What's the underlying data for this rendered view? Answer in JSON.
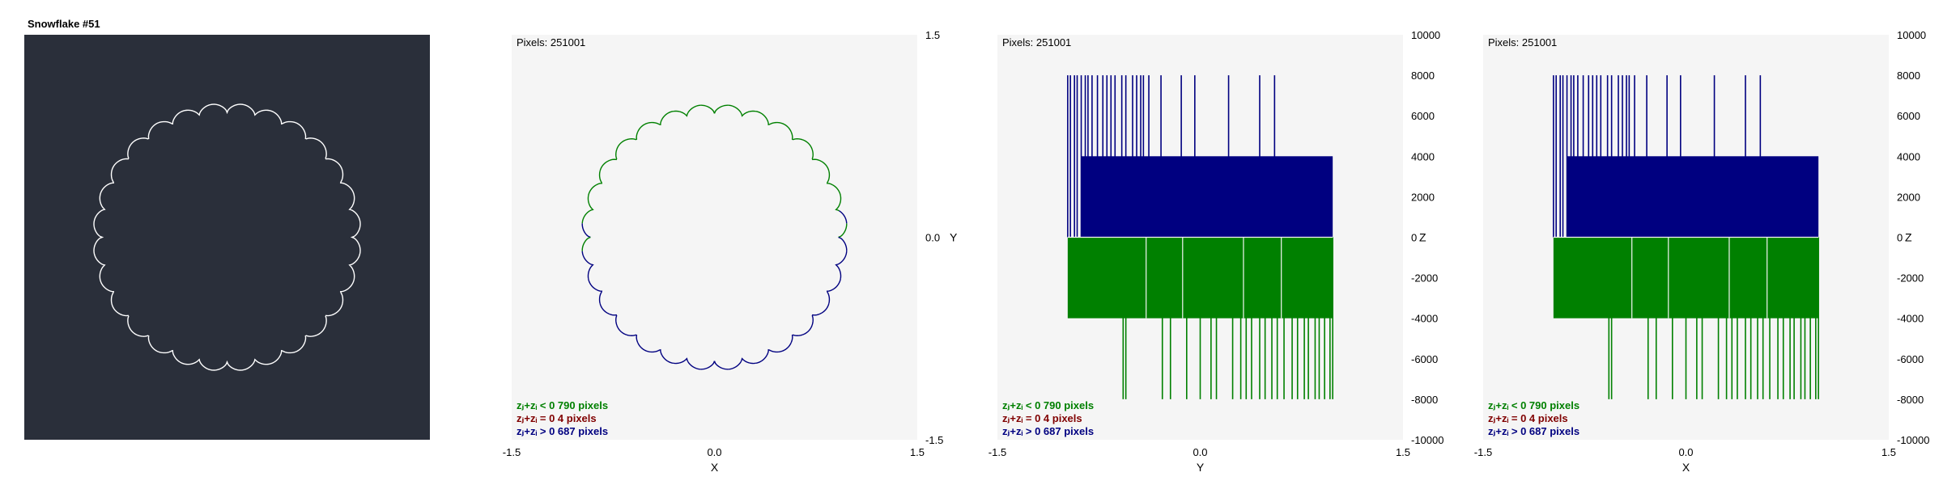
{
  "snowflake": {
    "title": "Snowflake #51",
    "background": "#2a2f3a",
    "line_color": "#ffffff"
  },
  "colors": {
    "plot_bg": "#f5f5f5",
    "negative": "#008000",
    "zero": "#800000",
    "positive": "#000080"
  },
  "legend": {
    "negative": "zⱼ+zᵢ < 0  790 pixels",
    "zero": "zⱼ+zᵢ = 0  4 pixels",
    "positive": "zⱼ+zᵢ > 0  687 pixels"
  },
  "chart_data": [
    {
      "type": "scatter",
      "description_shape": "closed snowflake outline in the X-Y plane",
      "title": "Pixels: 251001",
      "xlabel": "X",
      "ylabel": "Y",
      "xlim": [
        -1.5,
        1.5
      ],
      "ylim": [
        -1.5,
        1.5
      ],
      "xticks": [
        "-1.5",
        "0.0",
        "1.5"
      ],
      "yticks": [
        "1.5",
        "0.0",
        "-1.5"
      ],
      "grid": false,
      "curve": {
        "radius": 0.95,
        "lobes": 28,
        "amplitude": 0.035
      }
    },
    {
      "type": "bar",
      "title": "Pixels: 251001",
      "xlabel": "Y",
      "ylabel": "Z",
      "xlim": [
        -1.5,
        1.5
      ],
      "ylim": [
        -10000,
        10000
      ],
      "xticks": [
        "-1.5",
        "0.0",
        "1.5"
      ],
      "yticks": [
        "10000",
        "8000",
        "6000",
        "4000",
        "2000",
        "0",
        "-2000",
        "-4000",
        "-6000",
        "-8000",
        "-10000"
      ],
      "x_range": [
        -0.98,
        0.98
      ],
      "bands": [
        {
          "name": "positive",
          "from": 0,
          "to": 4000,
          "x_from": -0.88,
          "x_to": 0.98
        },
        {
          "name": "negative",
          "from": -4000,
          "to": 0,
          "x_from": -0.98,
          "x_to": 0.98
        }
      ],
      "positive_spikes_x": [
        -0.98,
        -0.96,
        -0.93,
        -0.91,
        -0.88,
        -0.85,
        -0.83,
        -0.8,
        -0.76,
        -0.72,
        -0.69,
        -0.66,
        -0.63,
        -0.58,
        -0.55,
        -0.5,
        -0.47,
        -0.44,
        -0.42,
        -0.38,
        -0.29,
        -0.14,
        -0.04,
        0.21,
        0.44,
        0.55
      ],
      "positive_spike_top": 8000,
      "negative_spikes_x": [
        -0.57,
        -0.55,
        -0.28,
        -0.22,
        -0.1,
        0.0,
        0.08,
        0.12,
        0.24,
        0.3,
        0.34,
        0.38,
        0.44,
        0.48,
        0.53,
        0.57,
        0.62,
        0.68,
        0.72,
        0.77,
        0.8,
        0.85,
        0.88,
        0.92,
        0.96,
        0.98
      ],
      "negative_spike_bottom": -8000,
      "negative_white_lines_x": [
        -0.4,
        -0.13,
        0.32,
        0.6
      ]
    },
    {
      "type": "bar",
      "title": "Pixels: 251001",
      "xlabel": "X",
      "ylabel": "Z",
      "xlim": [
        -1.5,
        1.5
      ],
      "ylim": [
        -10000,
        10000
      ],
      "xticks": [
        "-1.5",
        "0.0",
        "1.5"
      ],
      "yticks": [
        "10000",
        "8000",
        "6000",
        "4000",
        "2000",
        "0",
        "-2000",
        "-4000",
        "-6000",
        "-8000",
        "-10000"
      ],
      "x_range": [
        -0.98,
        0.98
      ],
      "bands": [
        {
          "name": "positive",
          "from": 0,
          "to": 4000,
          "x_from": -0.88,
          "x_to": 0.98
        },
        {
          "name": "negative",
          "from": -4000,
          "to": 0,
          "x_from": -0.98,
          "x_to": 0.98
        }
      ],
      "positive_spikes_x": [
        -0.98,
        -0.96,
        -0.93,
        -0.91,
        -0.88,
        -0.85,
        -0.83,
        -0.8,
        -0.76,
        -0.72,
        -0.69,
        -0.66,
        -0.63,
        -0.58,
        -0.55,
        -0.5,
        -0.47,
        -0.44,
        -0.42,
        -0.38,
        -0.29,
        -0.14,
        -0.04,
        0.21,
        0.44,
        0.55
      ],
      "positive_spike_top": 8000,
      "negative_spikes_x": [
        -0.57,
        -0.55,
        -0.28,
        -0.22,
        -0.1,
        0.0,
        0.08,
        0.12,
        0.24,
        0.3,
        0.34,
        0.38,
        0.44,
        0.48,
        0.53,
        0.57,
        0.62,
        0.68,
        0.72,
        0.77,
        0.8,
        0.85,
        0.88,
        0.92,
        0.96,
        0.98
      ],
      "negative_spike_bottom": -8000,
      "negative_white_lines_x": [
        -0.4,
        -0.13,
        0.32,
        0.6
      ]
    }
  ]
}
